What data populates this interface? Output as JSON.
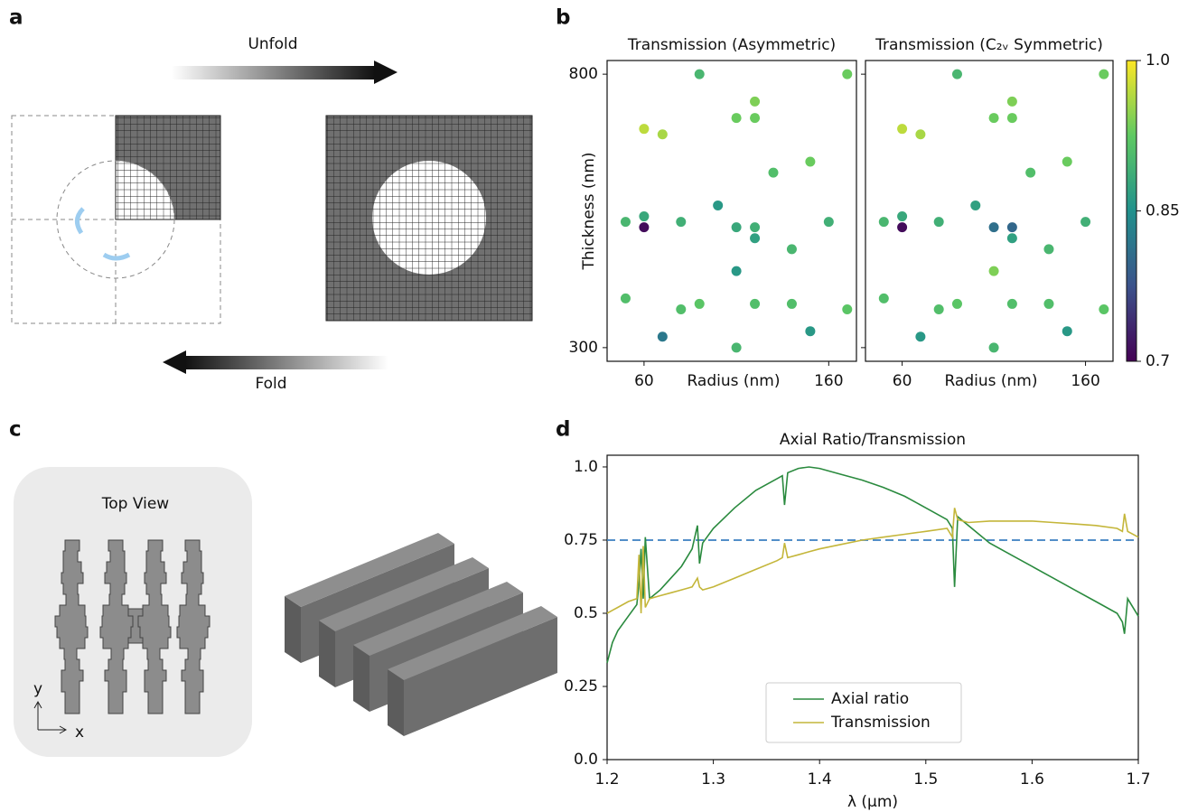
{
  "panel_labels": [
    "a",
    "b",
    "c",
    "d"
  ],
  "panel_a": {
    "unfold": "Unfold",
    "fold": "Fold"
  },
  "panel_c": {
    "title": "Top View",
    "axis_y": "y",
    "axis_x": "x"
  },
  "chart_data": [
    {
      "type": "scatter",
      "title": "Transmission (Asymmetric)",
      "xlabel": "Radius (nm)",
      "ylabel": "Thickness (nm)",
      "xlim": [
        40,
        175
      ],
      "ylim": [
        275,
        825
      ],
      "xticks": [
        60,
        160
      ],
      "yticks": [
        800,
        300
      ],
      "colormap": "viridis",
      "clim": [
        0.7,
        1
      ],
      "x": [
        90,
        170,
        120,
        110,
        120,
        60,
        70,
        150,
        130,
        50,
        60,
        60,
        80,
        100,
        110,
        120,
        120,
        160,
        140,
        110,
        50,
        80,
        90,
        120,
        140,
        170,
        150,
        70,
        110
      ],
      "y": [
        800,
        800,
        750,
        720,
        720,
        700,
        690,
        640,
        620,
        530,
        540,
        520,
        530,
        560,
        520,
        520,
        500,
        530,
        480,
        440,
        390,
        370,
        380,
        380,
        380,
        370,
        330,
        320,
        300
      ],
      "c": [
        0.9,
        0.93,
        0.94,
        0.93,
        0.93,
        0.97,
        0.96,
        0.93,
        0.91,
        0.9,
        0.88,
        0.71,
        0.89,
        0.86,
        0.88,
        0.89,
        0.87,
        0.89,
        0.9,
        0.86,
        0.91,
        0.91,
        0.92,
        0.91,
        0.91,
        0.92,
        0.86,
        0.82,
        0.9
      ]
    },
    {
      "type": "scatter",
      "title": "Transmission (C₂ᵥ Symmetric)",
      "xlabel": "Radius (nm)",
      "xlim": [
        40,
        175
      ],
      "ylim": [
        275,
        825
      ],
      "xticks": [
        60,
        160
      ],
      "yticks": [
        800,
        300
      ],
      "show_ytick_labels": false,
      "colormap": "viridis",
      "clim": [
        0.7,
        1
      ],
      "colorbar": {
        "ticks": [
          0.7,
          0.85,
          {
            "value": 1,
            "label": "1.0"
          }
        ]
      },
      "x": [
        90,
        170,
        120,
        110,
        120,
        60,
        70,
        150,
        130,
        50,
        60,
        60,
        80,
        100,
        110,
        120,
        120,
        160,
        140,
        110,
        50,
        80,
        90,
        120,
        140,
        170,
        150,
        70,
        110
      ],
      "y": [
        800,
        800,
        750,
        720,
        720,
        700,
        690,
        640,
        620,
        530,
        540,
        520,
        530,
        560,
        520,
        520,
        500,
        530,
        480,
        440,
        390,
        370,
        380,
        380,
        380,
        370,
        330,
        320,
        300
      ],
      "c": [
        0.9,
        0.93,
        0.94,
        0.93,
        0.93,
        0.97,
        0.96,
        0.93,
        0.91,
        0.9,
        0.88,
        0.71,
        0.89,
        0.87,
        0.81,
        0.8,
        0.87,
        0.89,
        0.9,
        0.94,
        0.91,
        0.91,
        0.92,
        0.91,
        0.91,
        0.92,
        0.86,
        0.86,
        0.9
      ]
    },
    {
      "type": "line",
      "title": "Axial Ratio/Transmission",
      "xlabel": "λ (μm)",
      "xlim": [
        1.2,
        1.7
      ],
      "ylim": [
        0,
        1.04
      ],
      "xticks": [
        1.2,
        1.3,
        1.4,
        1.5,
        1.6,
        1.7
      ],
      "yticks": [
        {
          "value": 0,
          "label": "0.0"
        },
        0.25,
        0.5,
        0.75,
        {
          "value": 1,
          "label": "1.0"
        }
      ],
      "hline": {
        "value": 0.75,
        "color": "#3b7fc0"
      },
      "legend": "lower center",
      "x": [
        1.2,
        1.205,
        1.21,
        1.22,
        1.228,
        1.23,
        1.232,
        1.234,
        1.236,
        1.24,
        1.25,
        1.26,
        1.27,
        1.28,
        1.285,
        1.287,
        1.29,
        1.3,
        1.32,
        1.34,
        1.36,
        1.365,
        1.367,
        1.37,
        1.38,
        1.39,
        1.4,
        1.42,
        1.44,
        1.46,
        1.48,
        1.5,
        1.52,
        1.525,
        1.527,
        1.53,
        1.54,
        1.56,
        1.58,
        1.6,
        1.62,
        1.64,
        1.66,
        1.68,
        1.685,
        1.687,
        1.69,
        1.7
      ],
      "series": [
        {
          "name": "Axial ratio",
          "color": "#2a8a3e",
          "values": [
            0.33,
            0.4,
            0.44,
            0.49,
            0.53,
            0.6,
            0.72,
            0.55,
            0.76,
            0.55,
            0.58,
            0.62,
            0.66,
            0.72,
            0.8,
            0.67,
            0.74,
            0.79,
            0.86,
            0.92,
            0.96,
            0.97,
            0.87,
            0.98,
            0.995,
            1.0,
            0.995,
            0.975,
            0.955,
            0.93,
            0.9,
            0.86,
            0.82,
            0.79,
            0.59,
            0.83,
            0.8,
            0.74,
            0.7,
            0.66,
            0.62,
            0.58,
            0.54,
            0.5,
            0.47,
            0.43,
            0.55,
            0.49
          ]
        },
        {
          "name": "Transmission",
          "color": "#c4b63a",
          "values": [
            0.5,
            0.51,
            0.52,
            0.54,
            0.55,
            0.7,
            0.5,
            0.73,
            0.52,
            0.55,
            0.56,
            0.57,
            0.58,
            0.59,
            0.62,
            0.59,
            0.58,
            0.59,
            0.62,
            0.65,
            0.68,
            0.69,
            0.74,
            0.69,
            0.7,
            0.71,
            0.72,
            0.735,
            0.75,
            0.76,
            0.77,
            0.78,
            0.79,
            0.76,
            0.86,
            0.82,
            0.81,
            0.815,
            0.815,
            0.815,
            0.81,
            0.805,
            0.8,
            0.79,
            0.78,
            0.84,
            0.78,
            0.76
          ]
        }
      ]
    }
  ]
}
